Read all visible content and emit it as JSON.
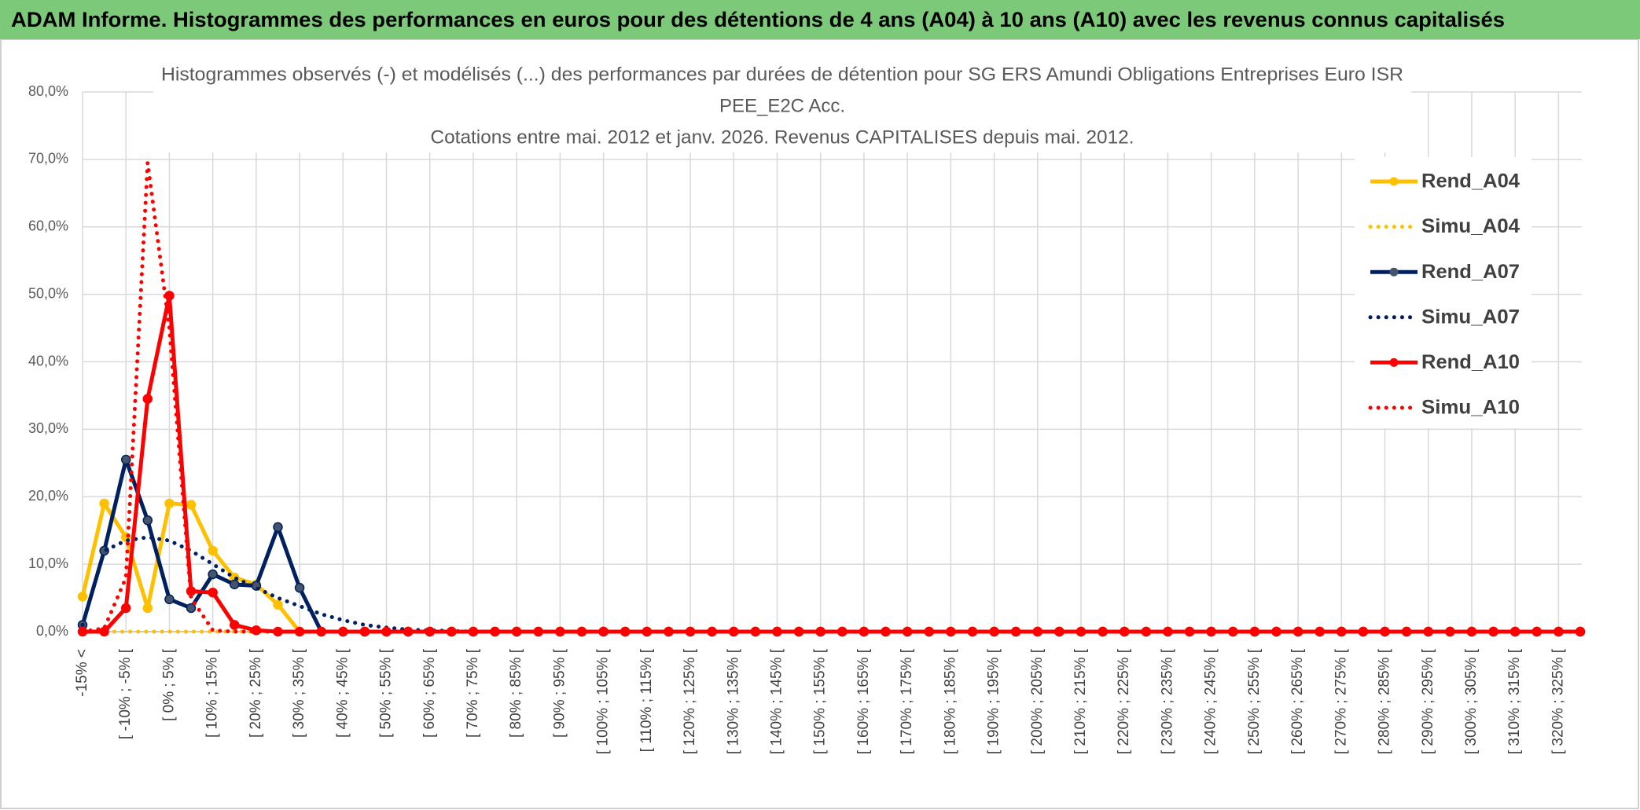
{
  "header": {
    "title": "ADAM Informe. Histogrammes des performances en euros pour des détentions de 4 ans (A04) à 10 ans (A10) avec les revenus connus capitalisés"
  },
  "chart_data": {
    "type": "line",
    "title": [
      "Histogrammes observés (-) et modélisés (...) des performances par durées de détention pour SG ERS Amundi Obligations Entreprises Euro ISR",
      "PEE_E2C Acc.",
      "Cotations entre mai. 2012 et janv. 2026. Revenus CAPITALISES depuis mai. 2012."
    ],
    "categories": [
      "-15% <",
      null,
      "[ -10% ; -5% [",
      null,
      "[ 0% ; 5% [",
      null,
      "[ 10% ; 15% [",
      null,
      "[ 20% ; 25% [",
      null,
      "[ 30% ; 35% [",
      null,
      "[ 40% ; 45% [",
      null,
      "[ 50% ; 55% [",
      null,
      "[ 60% ; 65% [",
      null,
      "[ 70% ; 75% [",
      null,
      "[ 80% ; 85% [",
      null,
      "[ 90% ; 95% [",
      null,
      "[ 100% ; 105% [",
      null,
      "[ 110% ; 115% [",
      null,
      "[ 120% ; 125% [",
      null,
      "[ 130% ; 135% [",
      null,
      "[ 140% ; 145% [",
      null,
      "[ 150% ; 155% [",
      null,
      "[ 160% ; 165% [",
      null,
      "[ 170% ; 175% [",
      null,
      "[ 180% ; 185% [",
      null,
      "[ 190% ; 195% [",
      null,
      "[ 200% ; 205% [",
      null,
      "[ 210% ; 215% [",
      null,
      "[ 220% ; 225% [",
      null,
      "[ 230% ; 235% [",
      null,
      "[ 240% ; 245% [",
      null,
      "[ 250% ; 255% [",
      null,
      "[ 260% ; 265% [",
      null,
      "[ 270% ; 275% [",
      null,
      "[ 280% ; 285% [",
      null,
      "[ 290% ; 295% [",
      null,
      "[ 300% ; 305% [",
      null,
      "[ 310% ; 315% [",
      null,
      "[ 320% ; 325% [",
      null
    ],
    "series": [
      {
        "name": "Rend_A04",
        "color": "#FFC000",
        "line_style": "solid",
        "markers": true,
        "values": [
          5.2,
          19,
          14,
          3.5,
          19,
          18.8,
          12,
          8,
          7,
          4,
          0,
          0,
          0,
          0,
          0,
          0,
          0,
          0,
          0,
          0,
          0,
          0,
          0,
          0,
          0,
          0,
          0,
          0,
          0,
          0,
          0,
          0,
          0,
          0,
          0,
          0,
          0,
          0,
          0,
          0,
          0,
          0,
          0,
          0,
          0,
          0,
          0,
          0,
          0,
          0,
          0,
          0,
          0,
          0,
          0,
          0,
          0,
          0,
          0,
          0,
          0,
          0,
          0,
          0,
          0,
          0,
          0,
          0,
          0,
          0
        ]
      },
      {
        "name": "Simu_A04",
        "color": "#FFC000",
        "line_style": "dotted",
        "markers": false,
        "values": [
          0,
          0,
          0,
          0,
          0,
          0,
          0,
          0,
          0,
          0,
          0,
          0,
          0,
          0,
          0,
          0,
          0,
          0,
          0,
          0,
          0,
          0,
          0,
          0,
          0,
          0,
          0,
          0,
          0,
          0,
          0,
          0,
          0,
          0,
          0,
          0,
          0,
          0,
          0,
          0,
          0,
          0,
          0,
          0,
          0,
          0,
          0,
          0,
          0,
          0,
          0,
          0,
          0,
          0,
          0,
          0,
          0,
          0,
          0,
          0,
          0,
          0,
          0,
          0,
          0,
          0,
          0,
          0,
          0,
          0
        ]
      },
      {
        "name": "Rend_A07",
        "color": "#002060",
        "line_style": "solid",
        "markers": true,
        "values": [
          1,
          12,
          25.5,
          16.5,
          4.8,
          3.5,
          8.5,
          7,
          6.8,
          15.5,
          6.5,
          0,
          0,
          0,
          0,
          0,
          0,
          0,
          0,
          0,
          0,
          0,
          0,
          0,
          0,
          0,
          0,
          0,
          0,
          0,
          0,
          0,
          0,
          0,
          0,
          0,
          0,
          0,
          0,
          0,
          0,
          0,
          0,
          0,
          0,
          0,
          0,
          0,
          0,
          0,
          0,
          0,
          0,
          0,
          0,
          0,
          0,
          0,
          0,
          0,
          0,
          0,
          0,
          0,
          0,
          0,
          0,
          0,
          0,
          0
        ]
      },
      {
        "name": "Simu_A07",
        "color": "#002060",
        "line_style": "dotted",
        "markers": false,
        "values": [
          1,
          12,
          13.5,
          14,
          13.5,
          12,
          10,
          8,
          6.5,
          5,
          3.8,
          2.6,
          1.7,
          1,
          0.6,
          0.3,
          0.2,
          0.1,
          0,
          0,
          0,
          0,
          0,
          0,
          0,
          0,
          0,
          0,
          0,
          0,
          0,
          0,
          0,
          0,
          0,
          0,
          0,
          0,
          0,
          0,
          0,
          0,
          0,
          0,
          0,
          0,
          0,
          0,
          0,
          0,
          0,
          0,
          0,
          0,
          0,
          0,
          0,
          0,
          0,
          0,
          0,
          0,
          0,
          0,
          0,
          0,
          0,
          0,
          0,
          0
        ]
      },
      {
        "name": "Rend_A10",
        "color": "#FF0000",
        "line_style": "solid",
        "markers": true,
        "values": [
          0,
          0,
          3.5,
          34.5,
          49.8,
          6,
          5.8,
          1,
          0.2,
          0,
          0,
          0,
          0,
          0,
          0,
          0,
          0,
          0,
          0,
          0,
          0,
          0,
          0,
          0,
          0,
          0,
          0,
          0,
          0,
          0,
          0,
          0,
          0,
          0,
          0,
          0,
          0,
          0,
          0,
          0,
          0,
          0,
          0,
          0,
          0,
          0,
          0,
          0,
          0,
          0,
          0,
          0,
          0,
          0,
          0,
          0,
          0,
          0,
          0,
          0,
          0,
          0,
          0,
          0,
          0,
          0,
          0,
          0,
          0,
          0
        ]
      },
      {
        "name": "Simu_A10",
        "color": "#FF0000",
        "line_style": "dotted",
        "markers": false,
        "values": [
          0,
          0.5,
          8,
          69.5,
          45,
          5,
          0.2,
          0,
          0,
          0,
          0,
          0,
          0,
          0,
          0,
          0,
          0,
          0,
          0,
          0,
          0,
          0,
          0,
          0,
          0,
          0,
          0,
          0,
          0,
          0,
          0,
          0,
          0,
          0,
          0,
          0,
          0,
          0,
          0,
          0,
          0,
          0,
          0,
          0,
          0,
          0,
          0,
          0,
          0,
          0,
          0,
          0,
          0,
          0,
          0,
          0,
          0,
          0,
          0,
          0,
          0,
          0,
          0,
          0,
          0,
          0,
          0,
          0,
          0,
          0
        ]
      }
    ],
    "ylim": [
      0,
      80
    ],
    "yticks": [
      {
        "value": 0,
        "label": "0,0%"
      },
      {
        "value": 10,
        "label": "10,0%"
      },
      {
        "value": 20,
        "label": "20,0%"
      },
      {
        "value": 30,
        "label": "30,0%"
      },
      {
        "value": 40,
        "label": "40,0%"
      },
      {
        "value": 50,
        "label": "50,0%"
      },
      {
        "value": 60,
        "label": "60,0%"
      },
      {
        "value": 70,
        "label": "70,0%"
      },
      {
        "value": 80,
        "label": "80,0%"
      }
    ],
    "grid": true,
    "legend": "right"
  }
}
